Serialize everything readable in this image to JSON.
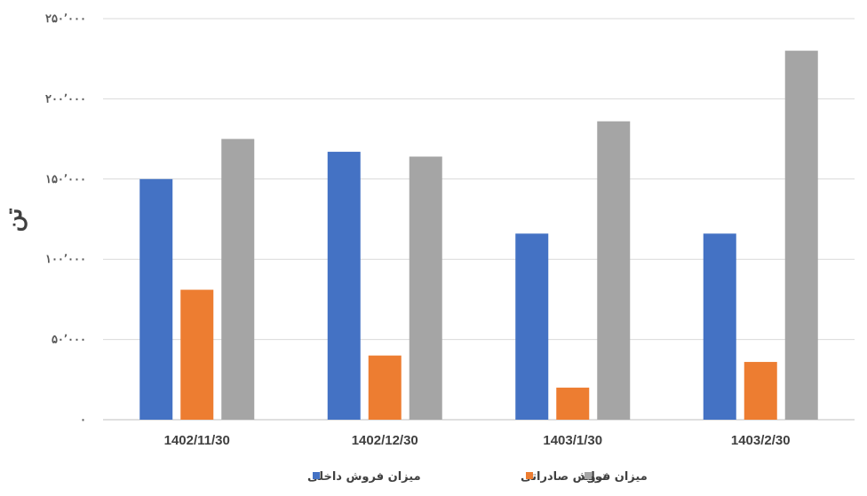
{
  "chart_data": {
    "type": "bar",
    "categories": [
      "1402/11/30",
      "1402/12/30",
      "1403/1/30",
      "1403/2/30"
    ],
    "series": [
      {
        "name": "میزان فروش داخلی",
        "color": "#4472C4",
        "values": [
          150000,
          167000,
          116000,
          116000
        ]
      },
      {
        "name": "میزان فروش صادراتی",
        "color": "#ED7D31",
        "values": [
          81000,
          40000,
          20000,
          36000
        ]
      },
      {
        "name": "تولید",
        "color": "#A5A5A5",
        "values": [
          175000,
          164000,
          186000,
          230000
        ]
      }
    ],
    "ylabel": "تن",
    "ylim": [
      0,
      250000
    ],
    "yticks": [
      0,
      50000,
      100000,
      150000,
      200000,
      250000
    ],
    "ytick_labels": [
      "۰",
      "۵۰٬۰۰۰",
      "۱۰۰٬۰۰۰",
      "۱۵۰٬۰۰۰",
      "۲۰۰٬۰۰۰",
      "۲۵۰٬۰۰۰"
    ],
    "grid": true,
    "legend_position": "bottom"
  }
}
